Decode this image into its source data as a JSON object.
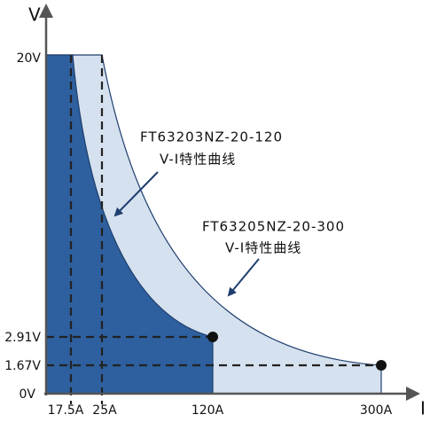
{
  "axes": {
    "y_label": "V",
    "x_label": "I",
    "y_ticks": [
      "20V",
      "2.91V",
      "1.67V",
      "0V"
    ],
    "x_ticks": [
      "17.5A",
      "25A",
      "120A",
      "300A"
    ]
  },
  "curves": [
    {
      "model": "FT63203NZ-20-120",
      "caption": "V-I特性曲线"
    },
    {
      "model": "FT63205NZ-20-300",
      "caption": "V-I特性曲线"
    }
  ]
}
